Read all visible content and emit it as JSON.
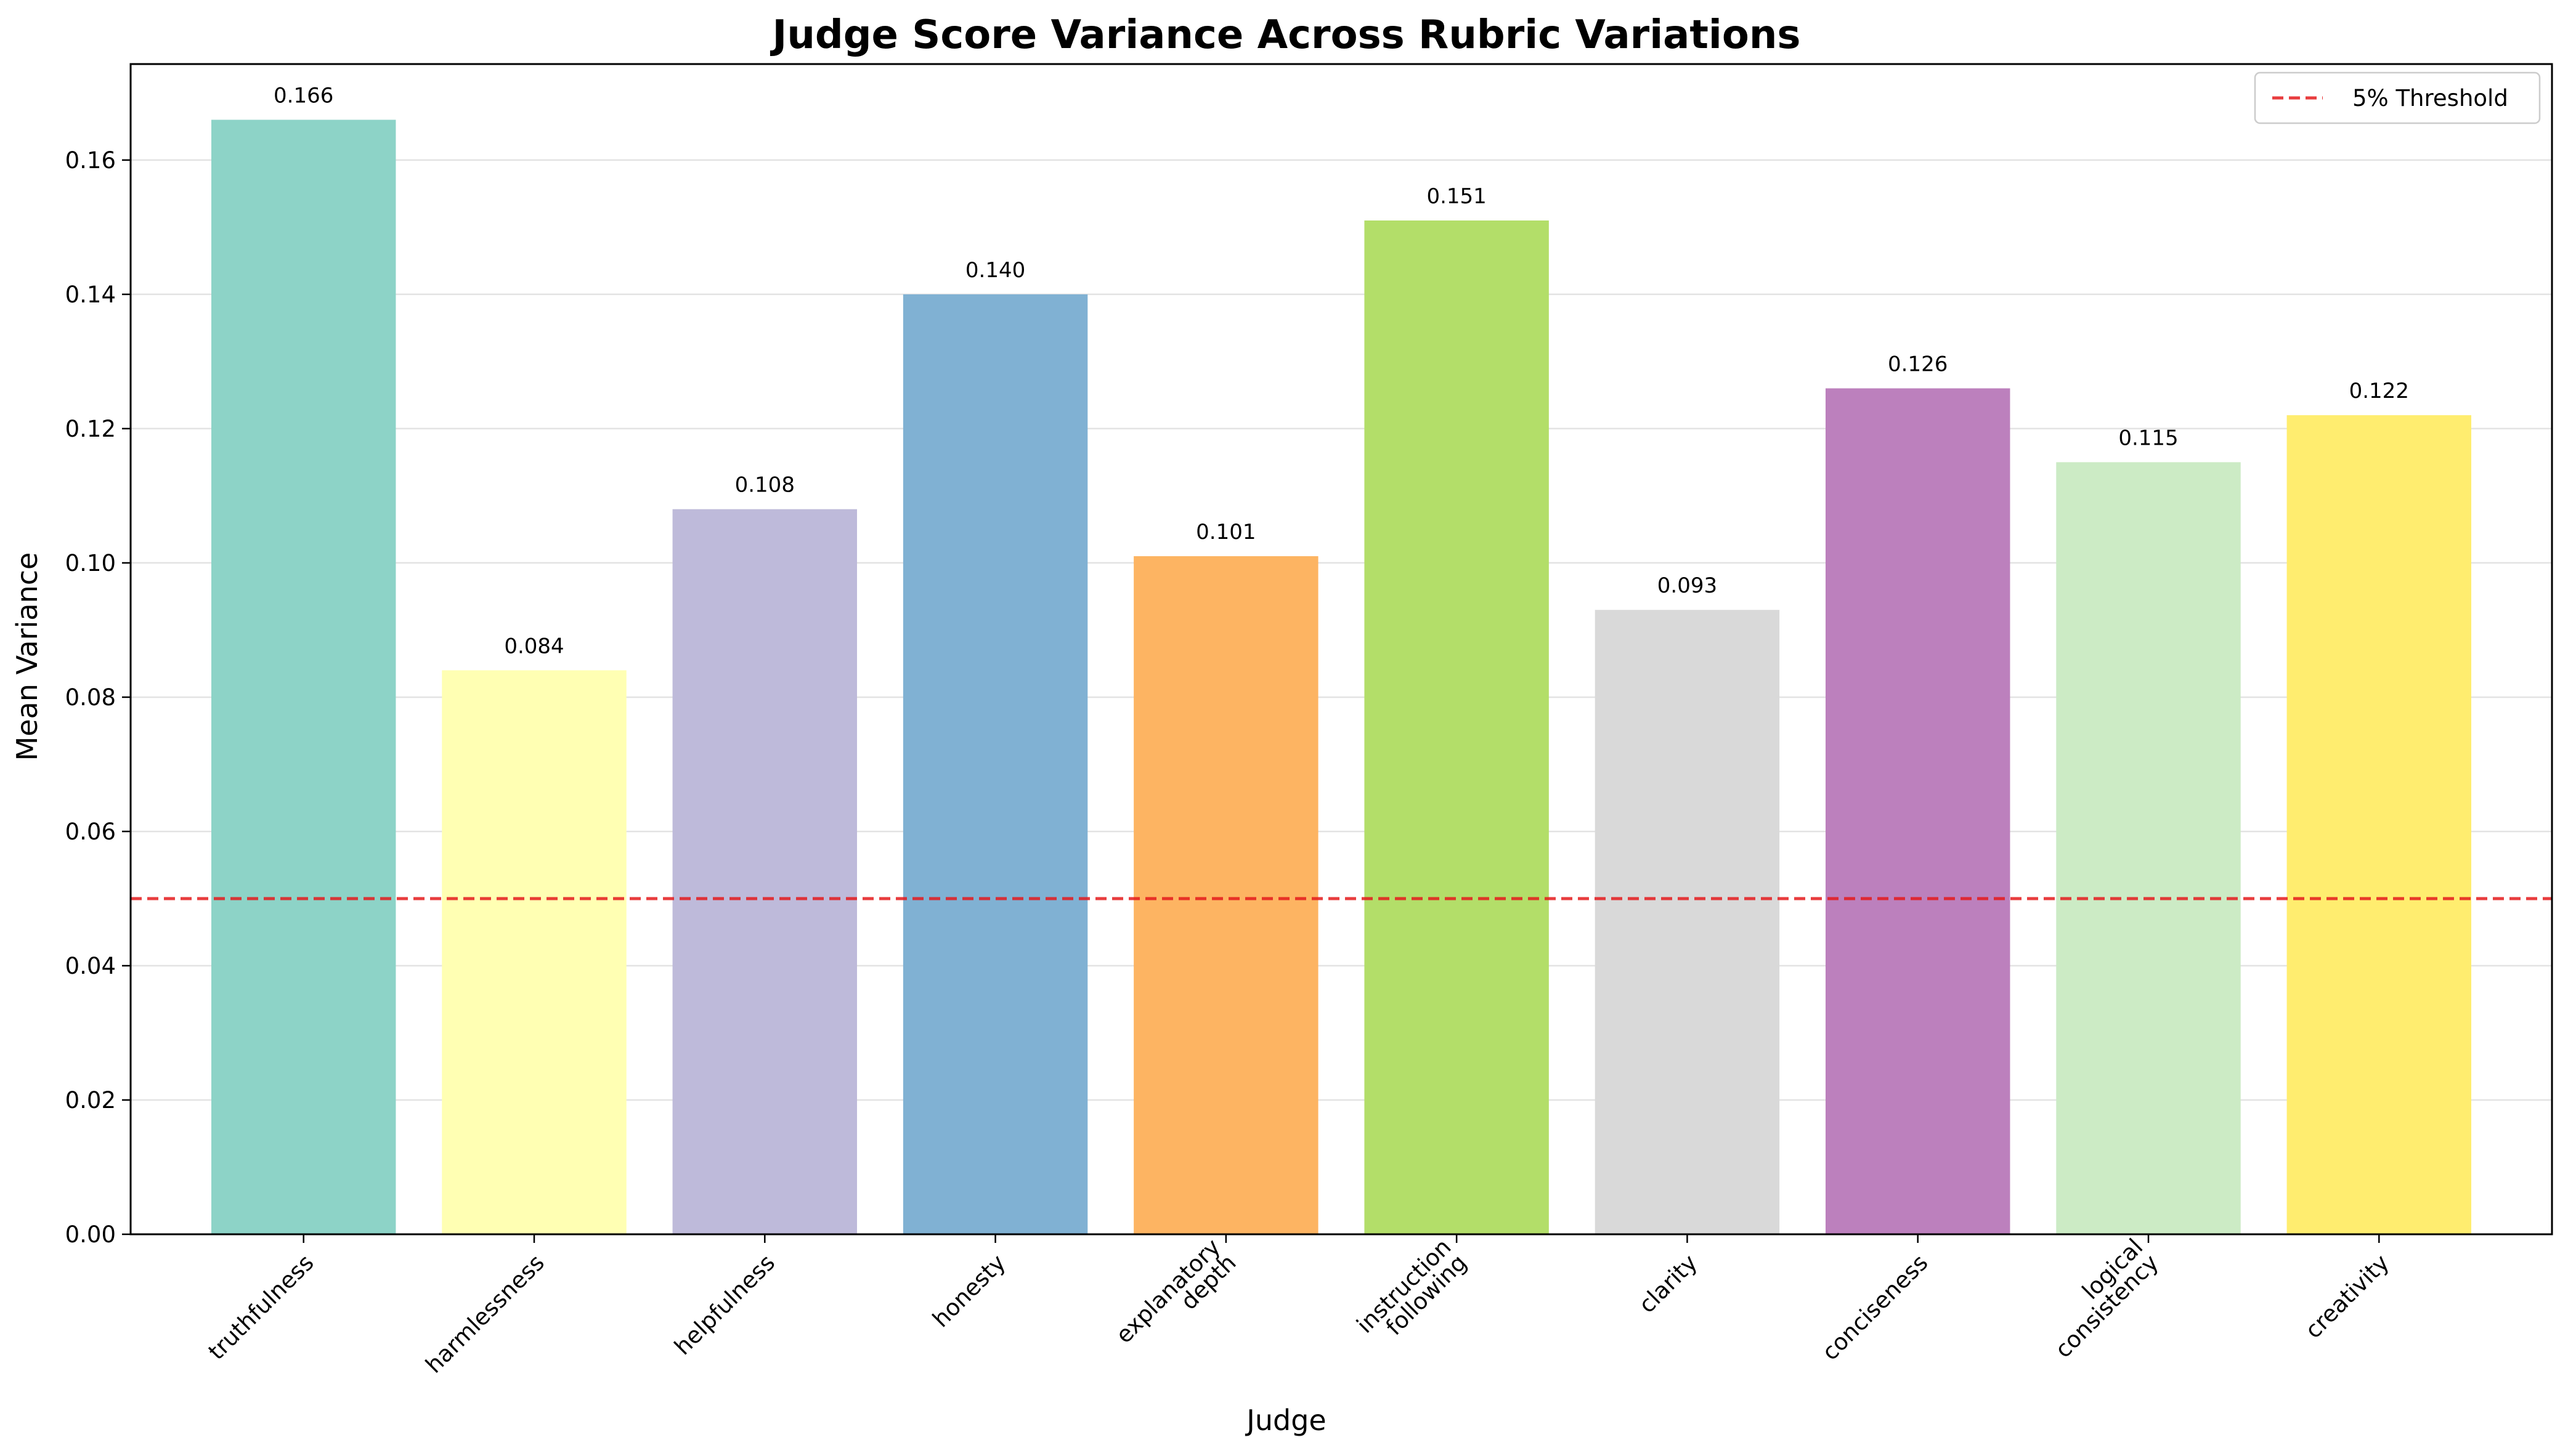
{
  "chart_data": {
    "type": "bar",
    "title": "Judge Score Variance Across Rubric Variations",
    "xlabel": "Judge",
    "ylabel": "Mean Variance",
    "ylim": [
      0,
      0.1743
    ],
    "yticks": [
      "0.00",
      "0.02",
      "0.04",
      "0.06",
      "0.08",
      "0.10",
      "0.12",
      "0.14",
      "0.16"
    ],
    "categories": [
      [
        "truthfulness"
      ],
      [
        "harmlessness"
      ],
      [
        "helpfulness"
      ],
      [
        "honesty"
      ],
      [
        "explanatory",
        "depth"
      ],
      [
        "instruction",
        "following"
      ],
      [
        "clarity"
      ],
      [
        "conciseness"
      ],
      [
        "logical",
        "consistency"
      ],
      [
        "creativity"
      ]
    ],
    "values": [
      0.166,
      0.084,
      0.108,
      0.14,
      0.101,
      0.151,
      0.093,
      0.126,
      0.115,
      0.122
    ],
    "value_labels": [
      "0.166",
      "0.084",
      "0.108",
      "0.140",
      "0.101",
      "0.151",
      "0.093",
      "0.126",
      "0.115",
      "0.122"
    ],
    "colors": [
      "#8dd3c7",
      "#ffffb3",
      "#bebada",
      "#80b1d3",
      "#fdb462",
      "#b3de69",
      "#d9d9d9",
      "#bc80bd",
      "#ccebc5",
      "#ffed6f"
    ],
    "threshold": {
      "value": 0.05,
      "label": "5% Threshold",
      "color": "#e41a1c"
    },
    "grid": "y",
    "legend": "top-right"
  }
}
